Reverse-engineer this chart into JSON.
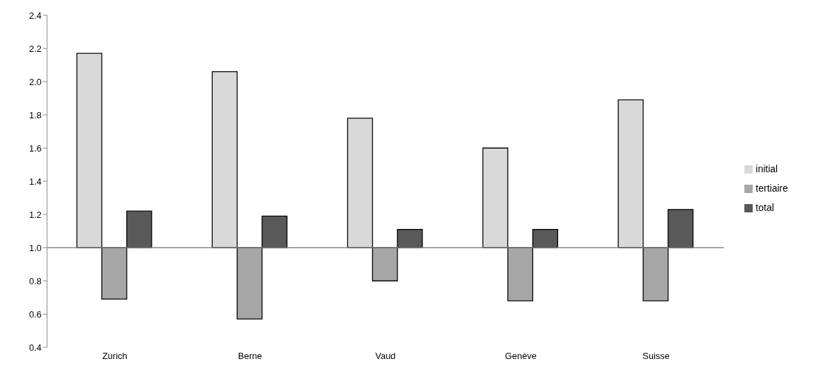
{
  "chart_data": {
    "type": "bar",
    "categories": [
      "Zurich",
      "Berne",
      "Vaud",
      "Genève",
      "Suisse"
    ],
    "series": [
      {
        "name": "initial",
        "color": "#d9d9d9",
        "base": [
          1,
          1,
          1,
          1,
          1
        ],
        "values": [
          1.17,
          1.06,
          0.78,
          0.6,
          0.89
        ]
      },
      {
        "name": "tertiaire",
        "color": "#a6a6a6",
        "base": [
          1,
          1,
          1,
          1,
          1
        ],
        "values": [
          -0.31,
          -0.43,
          -0.2,
          -0.32,
          -0.32
        ]
      },
      {
        "name": "total",
        "color": "#595959",
        "base": [
          1,
          1,
          1,
          1,
          1
        ],
        "values": [
          0.22,
          0.19,
          0.11,
          0.11,
          0.23
        ]
      }
    ],
    "ylim": [
      0.4,
      2.4
    ],
    "yticks": [
      0.4,
      0.6,
      0.8,
      {
        "value": 1,
        "label": "1.0"
      },
      1.2,
      1.4,
      1.6,
      1.8,
      {
        "value": 2,
        "label": "2.0"
      },
      2.2,
      2.4
    ],
    "legend": "right"
  }
}
